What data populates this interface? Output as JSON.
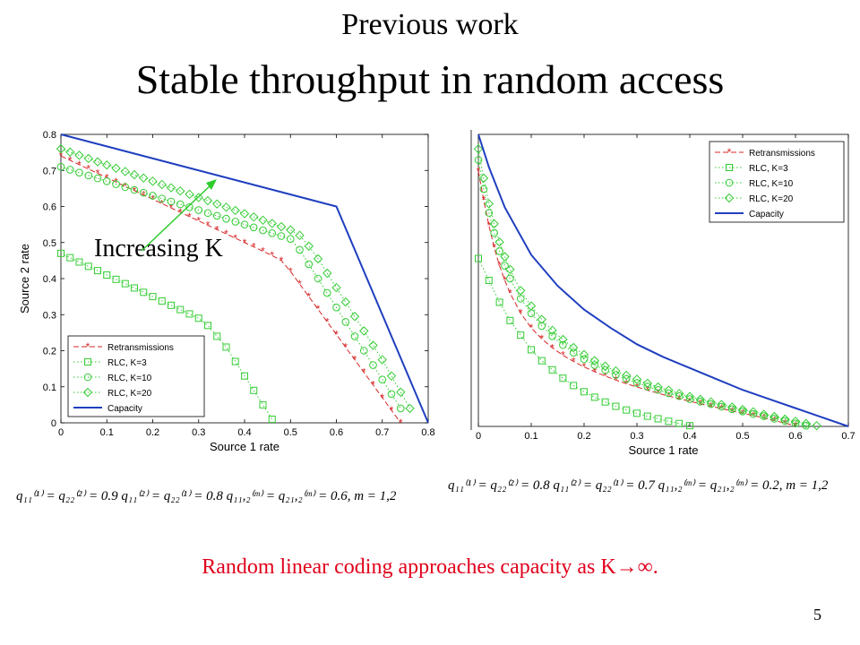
{
  "slide": {
    "subtitle": "Previous work",
    "title": "Stable throughput in random access",
    "conclusion": "Random linear coding approaches capacity as K→∞.",
    "page_number": "5",
    "annotation": "Increasing K",
    "eq_left": "q₁₁⁽¹⁾ = q₂₂⁽²⁾ = 0.9    q₁₁⁽²⁾ = q₂₂⁽¹⁾ = 0.8    q₁₁,₂⁽ᵐ⁾ = q₂₁,₂⁽ᵐ⁾ = 0.6, m = 1,2",
    "eq_right": "q₁₁⁽¹⁾ = q₂₂⁽²⁾ = 0.8    q₁₁⁽²⁾ = q₂₂⁽¹⁾ = 0.7    q₁₁,₂⁽ᵐ⁾ = q₂₁,₂⁽ᵐ⁾ = 0.2, m = 1,2"
  },
  "colors": {
    "retx": "#d62728",
    "rlc": "#33cc33",
    "capacity": "#1f3fbf",
    "arrow": "#2ecc2e",
    "conclusion": "#e0001b"
  },
  "chart_data": [
    {
      "type": "line",
      "xlabel": "Source 1 rate",
      "ylabel": "Source 2 rate",
      "xlim": [
        0,
        0.8
      ],
      "ylim": [
        0,
        0.8
      ],
      "xticks": [
        "0",
        "0.1",
        "0.2",
        "0.3",
        "0.4",
        "0.5",
        "0.6",
        "0.7",
        "0.8"
      ],
      "yticks": [
        "0",
        "0.1",
        "0.2",
        "0.3",
        "0.4",
        "0.5",
        "0.6",
        "0.7",
        "0.8"
      ],
      "legend_position": "bottom-left",
      "series": [
        {
          "name": "Retransmissions",
          "style": "retx",
          "x": [
            0,
            0.02,
            0.04,
            0.06,
            0.08,
            0.1,
            0.12,
            0.14,
            0.16,
            0.18,
            0.2,
            0.22,
            0.24,
            0.26,
            0.28,
            0.3,
            0.32,
            0.34,
            0.36,
            0.38,
            0.4,
            0.42,
            0.44,
            0.46,
            0.48,
            0.5,
            0.52,
            0.54,
            0.56,
            0.58,
            0.6,
            0.62,
            0.64,
            0.66,
            0.68,
            0.7,
            0.72,
            0.74
          ],
          "y": [
            0.74,
            0.728,
            0.716,
            0.704,
            0.692,
            0.68,
            0.668,
            0.656,
            0.644,
            0.632,
            0.62,
            0.608,
            0.596,
            0.584,
            0.572,
            0.56,
            0.548,
            0.536,
            0.524,
            0.512,
            0.5,
            0.488,
            0.476,
            0.464,
            0.45,
            0.42,
            0.385,
            0.35,
            0.315,
            0.28,
            0.245,
            0.21,
            0.175,
            0.14,
            0.105,
            0.07,
            0.035,
            0
          ]
        },
        {
          "name": "RLC, K=3",
          "style": "sq",
          "x": [
            0,
            0.02,
            0.04,
            0.06,
            0.08,
            0.1,
            0.12,
            0.14,
            0.16,
            0.18,
            0.2,
            0.22,
            0.24,
            0.26,
            0.28,
            0.3,
            0.32,
            0.34,
            0.36,
            0.38,
            0.4,
            0.42,
            0.44,
            0.46
          ],
          "y": [
            0.47,
            0.458,
            0.446,
            0.434,
            0.422,
            0.41,
            0.398,
            0.386,
            0.374,
            0.362,
            0.35,
            0.338,
            0.326,
            0.314,
            0.302,
            0.29,
            0.27,
            0.24,
            0.21,
            0.17,
            0.13,
            0.09,
            0.05,
            0.01
          ]
        },
        {
          "name": "RLC, K=10",
          "style": "circ",
          "x": [
            0,
            0.02,
            0.04,
            0.06,
            0.08,
            0.1,
            0.12,
            0.14,
            0.16,
            0.18,
            0.2,
            0.22,
            0.24,
            0.26,
            0.28,
            0.3,
            0.32,
            0.34,
            0.36,
            0.38,
            0.4,
            0.42,
            0.44,
            0.46,
            0.48,
            0.5,
            0.52,
            0.54,
            0.56,
            0.58,
            0.6,
            0.62,
            0.64,
            0.66,
            0.68,
            0.7,
            0.72,
            0.74
          ],
          "y": [
            0.71,
            0.702,
            0.694,
            0.686,
            0.678,
            0.67,
            0.662,
            0.654,
            0.646,
            0.638,
            0.63,
            0.622,
            0.614,
            0.606,
            0.598,
            0.59,
            0.582,
            0.574,
            0.566,
            0.558,
            0.55,
            0.542,
            0.534,
            0.526,
            0.518,
            0.51,
            0.48,
            0.44,
            0.4,
            0.36,
            0.32,
            0.28,
            0.24,
            0.2,
            0.16,
            0.12,
            0.08,
            0.04
          ]
        },
        {
          "name": "RLC, K=20",
          "style": "diam",
          "x": [
            0,
            0.02,
            0.04,
            0.06,
            0.08,
            0.1,
            0.12,
            0.14,
            0.16,
            0.18,
            0.2,
            0.22,
            0.24,
            0.26,
            0.28,
            0.3,
            0.32,
            0.34,
            0.36,
            0.38,
            0.4,
            0.42,
            0.44,
            0.46,
            0.48,
            0.5,
            0.52,
            0.54,
            0.56,
            0.58,
            0.6,
            0.62,
            0.64,
            0.66,
            0.68,
            0.7,
            0.72,
            0.74,
            0.76
          ],
          "y": [
            0.76,
            0.751,
            0.742,
            0.733,
            0.724,
            0.715,
            0.706,
            0.697,
            0.688,
            0.679,
            0.67,
            0.661,
            0.652,
            0.643,
            0.634,
            0.625,
            0.616,
            0.607,
            0.598,
            0.589,
            0.58,
            0.571,
            0.562,
            0.553,
            0.544,
            0.535,
            0.52,
            0.49,
            0.455,
            0.415,
            0.375,
            0.335,
            0.295,
            0.255,
            0.215,
            0.175,
            0.13,
            0.085,
            0.04
          ]
        },
        {
          "name": "Capacity",
          "style": "cap",
          "x": [
            0,
            0.6,
            0.8
          ],
          "y": [
            0.8,
            0.6,
            0
          ]
        }
      ]
    },
    {
      "type": "line",
      "xlabel": "Source 1 rate",
      "ylabel": "",
      "xlim": [
        0,
        0.7
      ],
      "ylim": [
        0,
        0.8
      ],
      "xticks": [
        "0",
        "0.1",
        "0.2",
        "0.3",
        "0.4",
        "0.5",
        "0.6",
        "0.7"
      ],
      "legend_position": "top-right",
      "series": [
        {
          "name": "Retransmissions",
          "style": "retx",
          "x": [
            0,
            0.01,
            0.02,
            0.03,
            0.04,
            0.05,
            0.06,
            0.08,
            0.1,
            0.12,
            0.14,
            0.16,
            0.18,
            0.2,
            0.22,
            0.24,
            0.26,
            0.28,
            0.3,
            0.32,
            0.34,
            0.36,
            0.38,
            0.4,
            0.42,
            0.44,
            0.46,
            0.48,
            0.5,
            0.52,
            0.54,
            0.56,
            0.58,
            0.6
          ],
          "y": [
            0.7,
            0.62,
            0.55,
            0.49,
            0.44,
            0.4,
            0.365,
            0.31,
            0.27,
            0.24,
            0.215,
            0.195,
            0.178,
            0.163,
            0.15,
            0.138,
            0.127,
            0.117,
            0.108,
            0.099,
            0.091,
            0.083,
            0.076,
            0.069,
            0.062,
            0.055,
            0.049,
            0.042,
            0.036,
            0.03,
            0.023,
            0.016,
            0.009,
            0.002
          ]
        },
        {
          "name": "RLC, K=3",
          "style": "sq",
          "x": [
            0,
            0.02,
            0.04,
            0.06,
            0.08,
            0.1,
            0.12,
            0.14,
            0.16,
            0.18,
            0.2,
            0.22,
            0.24,
            0.26,
            0.28,
            0.3,
            0.32,
            0.34,
            0.36,
            0.38,
            0.4
          ],
          "y": [
            0.46,
            0.4,
            0.34,
            0.29,
            0.25,
            0.21,
            0.18,
            0.155,
            0.132,
            0.112,
            0.095,
            0.08,
            0.067,
            0.055,
            0.045,
            0.036,
            0.028,
            0.021,
            0.014,
            0.008,
            0.002
          ]
        },
        {
          "name": "RLC, K=10",
          "style": "circ",
          "x": [
            0,
            0.01,
            0.02,
            0.03,
            0.04,
            0.05,
            0.06,
            0.08,
            0.1,
            0.12,
            0.14,
            0.16,
            0.18,
            0.2,
            0.22,
            0.24,
            0.26,
            0.28,
            0.3,
            0.32,
            0.34,
            0.36,
            0.38,
            0.4,
            0.42,
            0.44,
            0.46,
            0.48,
            0.5,
            0.52,
            0.54,
            0.56,
            0.58,
            0.6,
            0.62
          ],
          "y": [
            0.73,
            0.65,
            0.585,
            0.53,
            0.48,
            0.44,
            0.405,
            0.35,
            0.31,
            0.275,
            0.247,
            0.223,
            0.202,
            0.184,
            0.168,
            0.154,
            0.141,
            0.13,
            0.119,
            0.109,
            0.1,
            0.091,
            0.083,
            0.075,
            0.068,
            0.061,
            0.054,
            0.047,
            0.041,
            0.034,
            0.028,
            0.021,
            0.015,
            0.008,
            0.002
          ]
        },
        {
          "name": "RLC, K=20",
          "style": "diam",
          "x": [
            0,
            0.01,
            0.02,
            0.03,
            0.04,
            0.05,
            0.06,
            0.08,
            0.1,
            0.12,
            0.14,
            0.16,
            0.18,
            0.2,
            0.22,
            0.24,
            0.26,
            0.28,
            0.3,
            0.32,
            0.34,
            0.36,
            0.38,
            0.4,
            0.42,
            0.44,
            0.46,
            0.48,
            0.5,
            0.52,
            0.54,
            0.56,
            0.58,
            0.6,
            0.62,
            0.64
          ],
          "y": [
            0.76,
            0.68,
            0.61,
            0.555,
            0.505,
            0.465,
            0.43,
            0.372,
            0.33,
            0.293,
            0.263,
            0.238,
            0.216,
            0.197,
            0.18,
            0.165,
            0.152,
            0.14,
            0.129,
            0.118,
            0.108,
            0.099,
            0.09,
            0.082,
            0.074,
            0.067,
            0.06,
            0.053,
            0.046,
            0.04,
            0.033,
            0.027,
            0.02,
            0.014,
            0.008,
            0.002
          ]
        },
        {
          "name": "Capacity",
          "style": "cap",
          "x": [
            0,
            0.02,
            0.05,
            0.1,
            0.15,
            0.2,
            0.25,
            0.3,
            0.35,
            0.4,
            0.45,
            0.5,
            0.55,
            0.6,
            0.65,
            0.7
          ],
          "y": [
            0.8,
            0.71,
            0.6,
            0.47,
            0.385,
            0.32,
            0.27,
            0.225,
            0.19,
            0.16,
            0.13,
            0.1,
            0.075,
            0.05,
            0.025,
            0
          ]
        }
      ]
    }
  ]
}
